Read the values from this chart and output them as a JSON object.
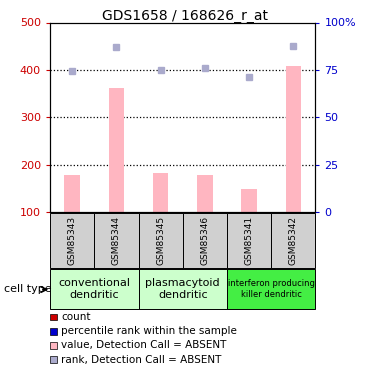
{
  "title": "GDS1658 / 168626_r_at",
  "samples": [
    "GSM85343",
    "GSM85344",
    "GSM85345",
    "GSM85346",
    "GSM85341",
    "GSM85342"
  ],
  "bar_values": [
    178,
    362,
    183,
    178,
    149,
    408
  ],
  "rank_values_left": [
    397,
    449,
    399,
    403,
    385,
    450
  ],
  "ylim_left": [
    100,
    500
  ],
  "ylim_right": [
    0,
    100
  ],
  "yticks_left": [
    100,
    200,
    300,
    400,
    500
  ],
  "yticks_right": [
    0,
    25,
    50,
    75,
    100
  ],
  "ytick_labels_right": [
    "0",
    "25",
    "50",
    "75",
    "100%"
  ],
  "bar_color": "#ffb6c1",
  "rank_color": "#aaaacc",
  "groups": [
    {
      "label": "conventional\ndendritic",
      "indices": [
        0,
        1
      ],
      "color": "#ccffcc"
    },
    {
      "label": "plasmacytoid\ndendritic",
      "indices": [
        2,
        3
      ],
      "color": "#ccffcc"
    },
    {
      "label": "interferon producing\nkiller dendritic",
      "indices": [
        4,
        5
      ],
      "color": "#44ee44"
    }
  ],
  "legend_items": [
    {
      "color": "#cc0000",
      "label": "count",
      "marker": "s"
    },
    {
      "color": "#0000cc",
      "label": "percentile rank within the sample",
      "marker": "s"
    },
    {
      "color": "#ffb6c1",
      "label": "value, Detection Call = ABSENT",
      "marker": "s"
    },
    {
      "color": "#aaaacc",
      "label": "rank, Detection Call = ABSENT",
      "marker": "s"
    }
  ],
  "cell_type_label": "cell type",
  "left_tick_color": "#cc0000",
  "right_tick_color": "#0000cc",
  "bar_width": 0.35,
  "group_label_fontsize_small": 6,
  "group_label_fontsize_large": 8
}
